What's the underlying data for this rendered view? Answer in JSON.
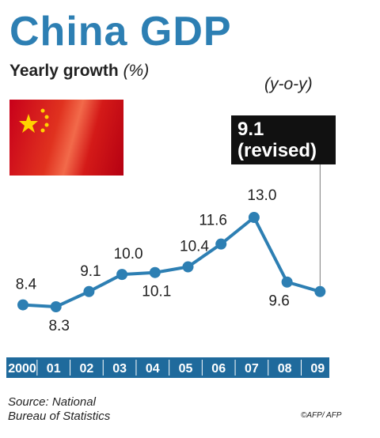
{
  "header": {
    "title": "China GDP",
    "subtitle": "Yearly growth",
    "subtitle_unit": "(%)",
    "yoy_label": "(y-o-y)"
  },
  "callout": {
    "line1": "9.1",
    "line2": "(revised)"
  },
  "footer": {
    "source_line1": "Source: National",
    "source_line2": "Bureau of Statistics",
    "credit": "©AFP/ AFP"
  },
  "colors": {
    "title": "#2d7fb3",
    "line": "#2d7fb3",
    "axis_band": "#1f6a9c",
    "flag_red": "#d21a18",
    "flag_star": "#ffd200"
  },
  "chart_data": {
    "type": "line",
    "title": "China GDP",
    "subtitle": "Yearly growth (%)",
    "categories": [
      "2000",
      "01",
      "02",
      "03",
      "04",
      "05",
      "06",
      "07",
      "08",
      "09"
    ],
    "series": [
      {
        "values": [
          8.4,
          8.3,
          9.1,
          10.0,
          10.1,
          10.4,
          11.6,
          13.0,
          9.6,
          9.1
        ]
      }
    ],
    "data_labels": [
      "8.4",
      "8.3",
      "9.1",
      "10.0",
      "10.1",
      "10.4",
      "11.6",
      "13.0",
      "9.6",
      ""
    ],
    "ylim": [
      8.0,
      13.5
    ],
    "grid": false,
    "legend": "none"
  }
}
